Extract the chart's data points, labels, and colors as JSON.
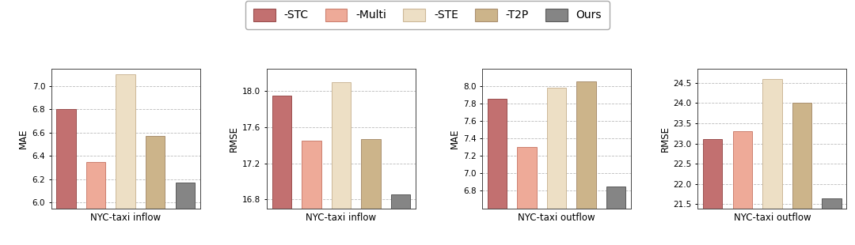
{
  "panels": [
    {
      "ylabel": "MAE",
      "xlabel": "NYC-taxi inflow",
      "values": [
        6.8,
        6.35,
        7.1,
        6.57,
        6.17
      ],
      "ylim": [
        5.95,
        7.15
      ],
      "yticks": [
        6.0,
        6.2,
        6.4,
        6.6,
        6.8,
        7.0
      ]
    },
    {
      "ylabel": "RMSE",
      "xlabel": "NYC-taxi inflow",
      "values": [
        17.95,
        17.45,
        18.1,
        17.47,
        16.85
      ],
      "ylim": [
        16.7,
        18.25
      ],
      "yticks": [
        16.8,
        17.2,
        17.6,
        18.0
      ]
    },
    {
      "ylabel": "MAE",
      "xlabel": "NYC-taxi outflow",
      "values": [
        7.85,
        7.3,
        7.98,
        8.05,
        6.85
      ],
      "ylim": [
        6.6,
        8.2
      ],
      "yticks": [
        6.8,
        7.0,
        7.2,
        7.4,
        7.6,
        7.8,
        8.0
      ]
    },
    {
      "ylabel": "RMSE",
      "xlabel": "NYC-taxi outflow",
      "values": [
        23.1,
        23.3,
        24.6,
        24.0,
        21.65
      ],
      "ylim": [
        21.4,
        24.85
      ],
      "yticks": [
        21.5,
        22.0,
        22.5,
        23.0,
        23.5,
        24.0,
        24.5
      ]
    }
  ],
  "legend_labels": [
    "-STC",
    "-Multi",
    "-STE",
    "-T2P",
    "Ours"
  ],
  "bar_colors": [
    "#c27070",
    "#eeaa98",
    "#eddfc5",
    "#ccb48a",
    "#858585"
  ],
  "bar_edge_colors": [
    "#9a4f4f",
    "#cc8070",
    "#ccb898",
    "#aa9070",
    "#5a5a5a"
  ],
  "background_color": "#ffffff",
  "grid_color": "#aaaaaa",
  "figure_facecolor": "#ffffff"
}
